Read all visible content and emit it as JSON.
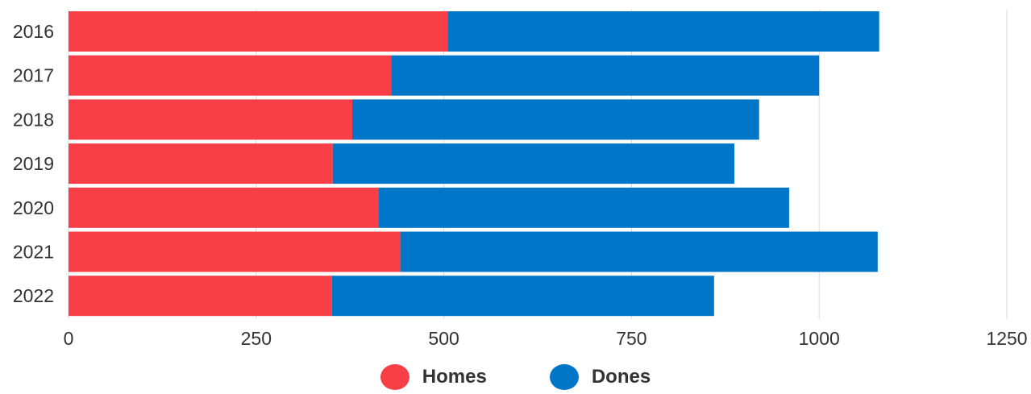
{
  "chart_data": {
    "type": "bar",
    "orientation": "horizontal",
    "stacked": true,
    "categories": [
      "2016",
      "2017",
      "2018",
      "2019",
      "2020",
      "2021",
      "2022"
    ],
    "series": [
      {
        "name": "Homes",
        "color": "#f83e46",
        "values": [
          505,
          430,
          378,
          352,
          413,
          442,
          351
        ]
      },
      {
        "name": "Dones",
        "color": "#0076c9",
        "values": [
          575,
          570,
          542,
          535,
          547,
          636,
          509
        ]
      }
    ],
    "x_ticks": [
      "0",
      "250",
      "500",
      "750",
      "1000",
      "1250"
    ],
    "xlim": [
      0,
      1250
    ],
    "title": "",
    "xlabel": "",
    "ylabel": "",
    "grid": "vertical",
    "legend_position": "bottom-center"
  }
}
